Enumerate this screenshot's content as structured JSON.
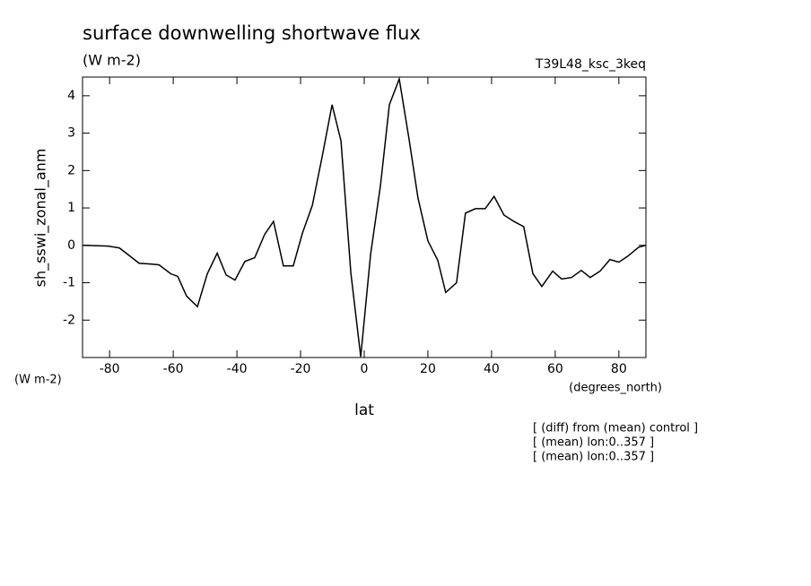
{
  "chart_data": {
    "type": "line",
    "title": "surface downwelling shortwave flux",
    "units": "(W m-2)",
    "dataset": "T39L48_ksc_3keq",
    "y_label": "sh_sswi_zonal_anm",
    "y_units": "(W m-2)",
    "x_units": "(degrees_north)",
    "x_label": "lat",
    "notes": [
      "[ (diff) from (mean) control ]",
      "[ (mean) lon:0..357 ]",
      "[ (mean) lon:0..357 ]"
    ],
    "x": [
      -88.5,
      -80.6,
      -76.9,
      -70.7,
      -67.3,
      -64.5,
      -60.8,
      -58.6,
      -55.8,
      -52.4,
      -49.3,
      -46.2,
      -43.4,
      -40.6,
      -37.5,
      -34.4,
      -31.3,
      -28.5,
      -25.4,
      -22.3,
      -19.4,
      -16.3,
      -13.2,
      -10.1,
      -7.3,
      -4.2,
      -1.1,
      2.0,
      5.1,
      7.9,
      11.0,
      14.1,
      16.9,
      20.0,
      23.1,
      25.6,
      29.0,
      31.8,
      34.9,
      38.0,
      40.8,
      43.9,
      47.0,
      50.1,
      53.0,
      55.8,
      59.2,
      62.0,
      65.1,
      68.2,
      71.0,
      74.1,
      77.2,
      80.0,
      82.8,
      86.2,
      88.5
    ],
    "series": [
      {
        "color": "#000000",
        "values": [
          0,
          -0.02,
          -0.07,
          -0.48,
          -0.5,
          -0.52,
          -0.76,
          -0.83,
          -1.36,
          -1.64,
          -0.76,
          -0.21,
          -0.79,
          -0.93,
          -0.43,
          -0.33,
          0.29,
          0.64,
          -0.55,
          -0.55,
          0.33,
          1.07,
          2.38,
          3.76,
          2.79,
          -0.74,
          -2.98,
          -0.24,
          1.6,
          3.76,
          4.45,
          2.83,
          1.26,
          0.12,
          -0.4,
          -1.26,
          -1.0,
          0.86,
          0.98,
          0.98,
          1.31,
          0.81,
          0.64,
          0.5,
          -0.76,
          -1.1,
          -0.69,
          -0.9,
          -0.86,
          -0.67,
          -0.86,
          -0.69,
          -0.38,
          -0.45,
          -0.29,
          -0.05,
          0
        ]
      }
    ],
    "xlim": [
      -88.5,
      88.5
    ],
    "ylim": [
      -3,
      4.5
    ],
    "xticks": [
      -80,
      -60,
      -40,
      -20,
      0,
      20,
      40,
      60,
      80
    ],
    "yticks": [
      -2,
      -1,
      0,
      1,
      2,
      3,
      4
    ]
  }
}
